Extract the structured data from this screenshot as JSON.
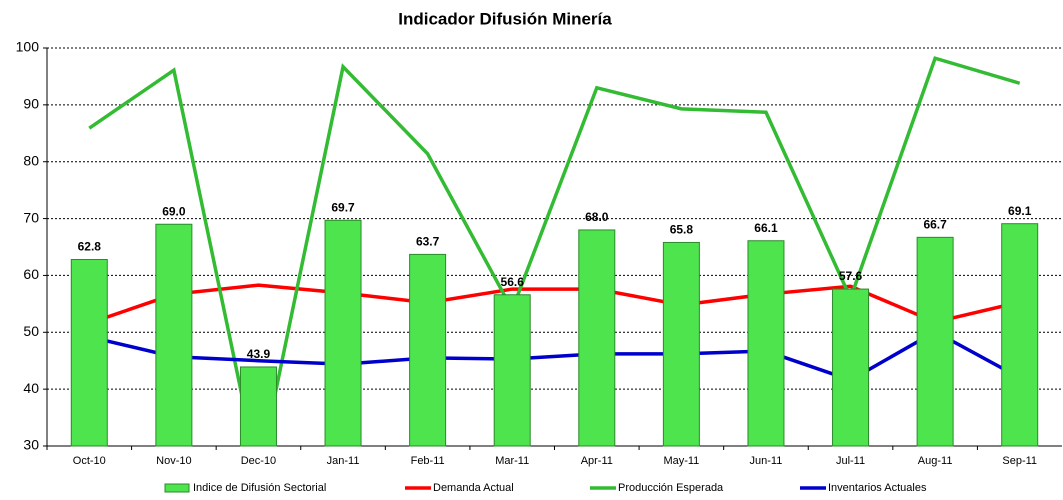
{
  "chart_data": {
    "type": "bar-line",
    "title": "Indicador Difusión Minería",
    "categories": [
      "Oct-10",
      "Nov-10",
      "Dec-10",
      "Jan-11",
      "Feb-11",
      "Mar-11",
      "Apr-11",
      "May-11",
      "Jun-11",
      "Jul-11",
      "Aug-11",
      "Sep-11"
    ],
    "series": [
      {
        "name": "Indice de Difusión Sectorial",
        "type": "bar",
        "color": "#4ee44e",
        "values": [
          62.8,
          69.0,
          43.9,
          69.7,
          63.7,
          56.6,
          68.0,
          65.8,
          66.1,
          57.6,
          66.7,
          69.1
        ],
        "value_labels": [
          "62.8",
          "69.0",
          "43.9",
          "69.7",
          "63.7",
          "56.6",
          "68.0",
          "65.8",
          "66.1",
          "57.6",
          "66.7",
          "69.1"
        ]
      },
      {
        "name": "Demanda Actual",
        "type": "line",
        "color": "#ff0000",
        "values": [
          51.6,
          56.7,
          58.3,
          56.9,
          55.2,
          57.6,
          57.6,
          54.8,
          56.7,
          58.1,
          51.8,
          55.3
        ]
      },
      {
        "name": "Producción Esperada",
        "type": "line",
        "color": "#33bb33",
        "values": [
          85.9,
          96.1,
          25,
          96.7,
          81.4,
          54.0,
          93.0,
          89.3,
          88.7,
          56.0,
          98.2,
          93.8
        ]
      },
      {
        "name": "Inventarios Actuales",
        "type": "line",
        "color": "#0000cc",
        "values": [
          49.2,
          45.7,
          45.0,
          44.4,
          45.5,
          45.3,
          46.2,
          46.2,
          46.7,
          41.6,
          50.1,
          42.0
        ]
      }
    ],
    "ylim": [
      30,
      100
    ],
    "yticks": [
      30,
      40,
      50,
      60,
      70,
      80,
      90,
      100
    ],
    "grid": true,
    "legend": "bottom"
  }
}
